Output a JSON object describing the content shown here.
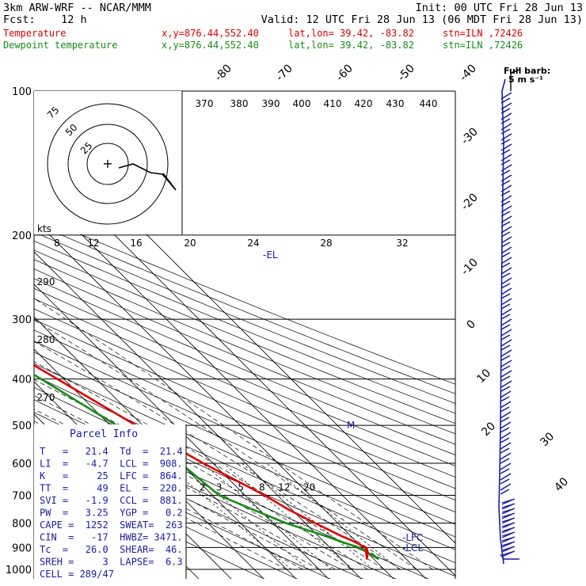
{
  "header": {
    "model": "3km ARW-WRF -- NCAR/MMM",
    "init": "Init: 00 UTC Fri 28 Jun 13",
    "fcst": "Fcst:    12 h",
    "valid": "Valid: 12 UTC Fri 28 Jun 13 (06 MDT Fri 28 Jun 13)"
  },
  "legend": [
    {
      "name": "Temperature",
      "xy": "x,y=876.44,552.40",
      "latlon": "lat,lon= 39.42, -83.82",
      "stn": "stn=ILN ,72426",
      "color": "#e00000"
    },
    {
      "name": "Dewpoint temperature",
      "xy": "x,y=876.44,552.40",
      "latlon": "lat,lon= 39.42, -83.82",
      "stn": "stn=ILN ,72426",
      "color": "#1a8c1a"
    }
  ],
  "colors": {
    "temperature": "#e00000",
    "dewpoint": "#1a8c1a",
    "annotation": "#1a1aaa",
    "black": "#000000"
  },
  "chart_data": {
    "type": "line",
    "pressure_levels": [
      "100",
      "200",
      "300",
      "400",
      "500",
      "600",
      "700",
      "800",
      "900",
      "1000"
    ],
    "isotherm_labels": [
      "-80",
      "-70",
      "-60",
      "-50",
      "-40",
      "-30",
      "-20",
      "-10",
      "0",
      "10",
      "20",
      "30",
      "40"
    ],
    "theta_labels": [
      "370",
      "380",
      "390",
      "400",
      "410",
      "420",
      "430",
      "440"
    ],
    "mixing_ratio_labels": [
      "2",
      "3",
      "5",
      "8",
      "12",
      "20"
    ],
    "left_labels": [
      "290",
      "280",
      "270"
    ],
    "hodograph": {
      "units": "kts",
      "ring_labels": [
        "25",
        "50",
        "75"
      ],
      "speed_labels": [
        "8",
        "12",
        "16",
        "20",
        "24",
        "28",
        "32"
      ]
    },
    "wind_barb_title": "Full barb:",
    "wind_barb_units": "5 m s⁻¹",
    "temperature": {
      "name": "Temperature",
      "p": [
        900,
        925,
        950,
        900,
        870,
        850,
        800,
        750,
        700,
        600,
        500,
        400,
        300,
        250,
        200,
        175,
        150,
        125,
        100
      ],
      "t": [
        21.4,
        20,
        18,
        21,
        19,
        17,
        13,
        9,
        6,
        -3,
        -12,
        -22,
        -35,
        -45,
        -52,
        -56,
        -54,
        -50,
        -48
      ]
    },
    "dewpoint": {
      "name": "Dewpoint temperature",
      "p": [
        925,
        950,
        900,
        880,
        850,
        800,
        750,
        700,
        600,
        500,
        400,
        300,
        250,
        200,
        175,
        160,
        150,
        140,
        125,
        100
      ],
      "td": [
        21,
        21.4,
        19,
        16,
        12,
        4,
        -2,
        -8,
        -10,
        -18,
        -27,
        -40,
        -48,
        -55,
        -60,
        -64,
        -68,
        -72,
        -70,
        -50
      ]
    },
    "annotations": [
      "EL",
      "LFC",
      "LCL",
      "M"
    ]
  },
  "parcel_info": {
    "title": "Parcel Info",
    "rows": [
      "T   =   21.4  Td  =  21.4",
      "LI  =   -4.7  LCL =  908.",
      "K   =     25  LFC =  864.",
      "TT  =     49  EL  =  220.",
      "SVI =   -1.9  CCL =  881.",
      "PW  =   3.25  YGP =   0.2",
      "CAPE =  1252  SWEAT=  263",
      "CIN  =   -17  HWBZ= 3471.",
      "Tc  =   26.0  SHEAR=  46.",
      "SREH =     3  LAPSE=  6.3",
      "CELL = 289/47"
    ]
  }
}
